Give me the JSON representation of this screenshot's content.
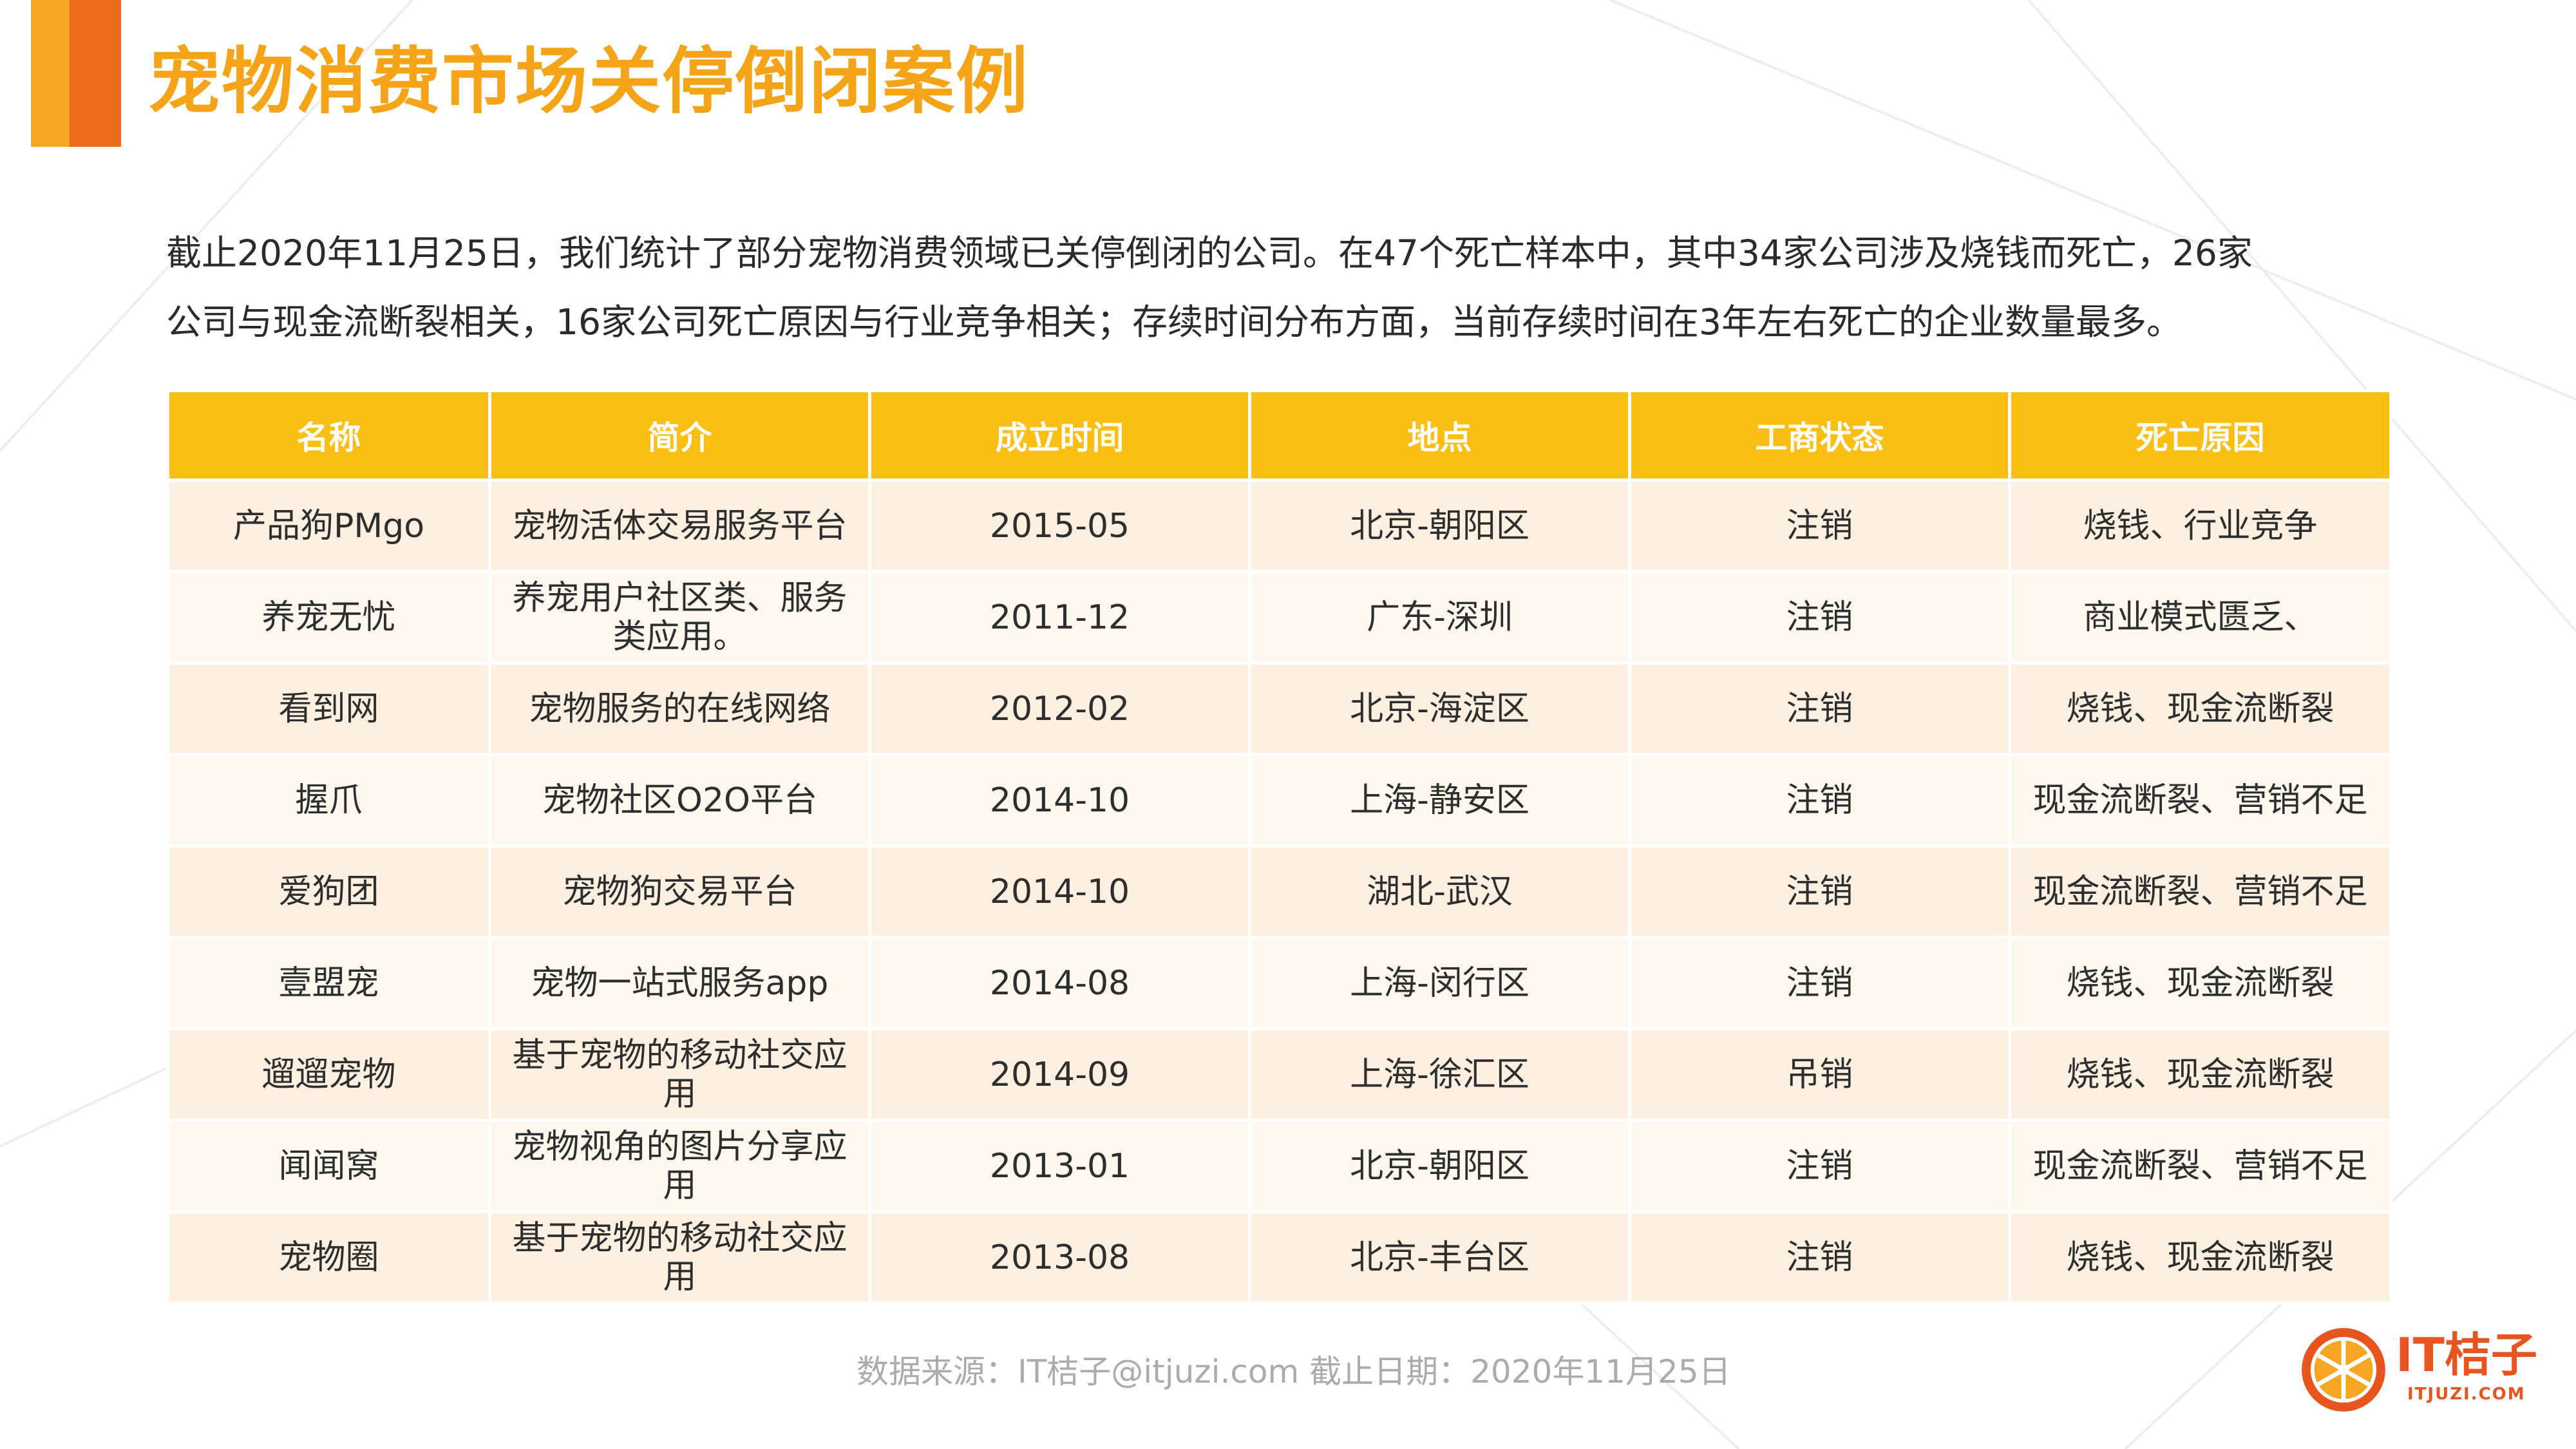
{
  "title": "宠物消费市场关停倒闭案例",
  "intro_lines": [
    "截止2020年11月25日，我们统计了部分宠物消费领域已关停倒闭的公司。在47个死亡样本中，其中34家公司涉及烧钱而死亡，26家",
    "公司与现金流断裂相关，16家公司死亡原因与行业竞争相关；存续时间分布方面，当前存续时间在3年左右死亡的企业数量最多。"
  ],
  "table": {
    "columns": [
      "名称",
      "简介",
      "成立时间",
      "地点",
      "工商状态",
      "死亡原因"
    ],
    "rows": [
      [
        "产品狗PMgo",
        "宠物活体交易服务平台",
        "2015-05",
        "北京-朝阳区",
        "注销",
        "烧钱、行业竞争"
      ],
      [
        "养宠无忧",
        "养宠用户社区类、服务类应用。",
        "2011-12",
        "广东-深圳",
        "注销",
        "商业模式匮乏、"
      ],
      [
        "看到网",
        "宠物服务的在线网络",
        "2012-02",
        "北京-海淀区",
        "注销",
        "烧钱、现金流断裂"
      ],
      [
        "握爪",
        "宠物社区O2O平台",
        "2014-10",
        "上海-静安区",
        "注销",
        "现金流断裂、营销不足"
      ],
      [
        "爱狗团",
        "宠物狗交易平台",
        "2014-10",
        "湖北-武汉",
        "注销",
        "现金流断裂、营销不足"
      ],
      [
        "壹盟宠",
        "宠物一站式服务app",
        "2014-08",
        "上海-闵行区",
        "注销",
        "烧钱、现金流断裂"
      ],
      [
        "遛遛宠物",
        "基于宠物的移动社交应用",
        "2014-09",
        "上海-徐汇区",
        "吊销",
        "烧钱、现金流断裂"
      ],
      [
        "闻闻窝",
        "宠物视角的图片分享应用",
        "2013-01",
        "北京-朝阳区",
        "注销",
        "现金流断裂、营销不足"
      ],
      [
        "宠物圈",
        "基于宠物的移动社交应用",
        "2013-08",
        "北京-丰台区",
        "注销",
        "烧钱、现金流断裂"
      ]
    ]
  },
  "source": "数据来源：IT桔子@itjuzi.com  截止日期：2020年11月25日",
  "logo": {
    "name": "IT桔子",
    "domain": "ITJUZI.COM",
    "icon": "orange-slice-icon"
  },
  "colors": {
    "accent": "#f5a317",
    "header_bg": "#fbbf13",
    "row_odd": "#fdf0e0",
    "row_even": "#fdf7ee",
    "logo": "#e8541e"
  }
}
